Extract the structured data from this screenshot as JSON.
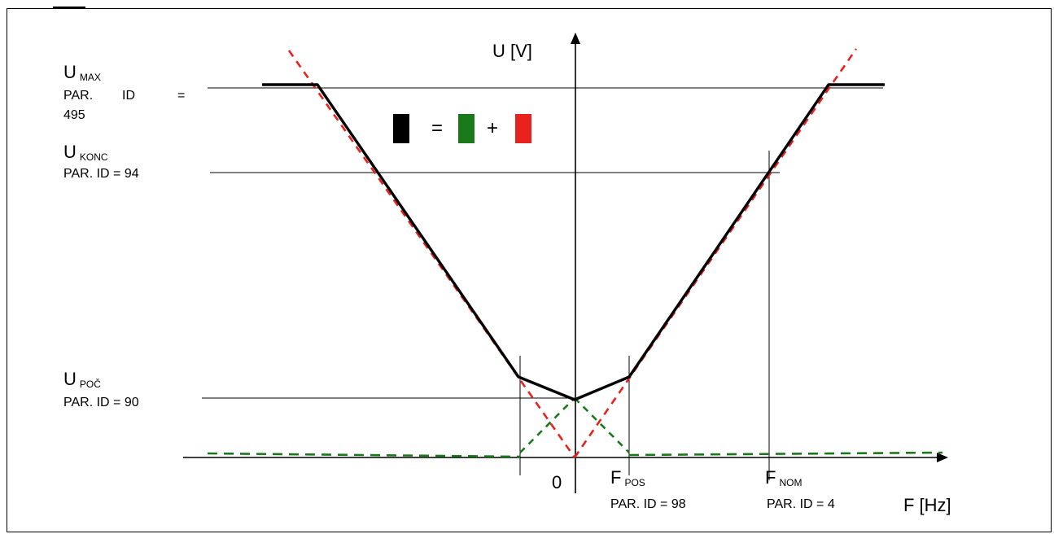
{
  "axes": {
    "y_label": "U [V]",
    "x_label": "F [Hz]",
    "origin_label": "0"
  },
  "labels": {
    "umax": {
      "main": "U",
      "sub": "MAX",
      "param_parts": [
        "PAR.",
        "ID",
        "=",
        "495"
      ]
    },
    "ukonc": {
      "main": "U",
      "sub": "KONC",
      "param": "PAR. ID = 94"
    },
    "upoc": {
      "main": "U",
      "sub": "POČ",
      "param": "PAR. ID = 90"
    },
    "fpos": {
      "main": "F",
      "sub": "POS",
      "param": "PAR. ID = 98"
    },
    "fnom": {
      "main": "F",
      "sub": "NOM",
      "param": "PAR. ID = 4"
    }
  },
  "legend": {
    "equals": "=",
    "plus": "+",
    "colors": {
      "sum": "#000000",
      "boost": "#1a7a1a",
      "linear": "#e8231e"
    }
  },
  "colors": {
    "black_curve": "#000000",
    "green_dashed": "#1a7a1a",
    "red_dashed": "#e8231e"
  }
}
